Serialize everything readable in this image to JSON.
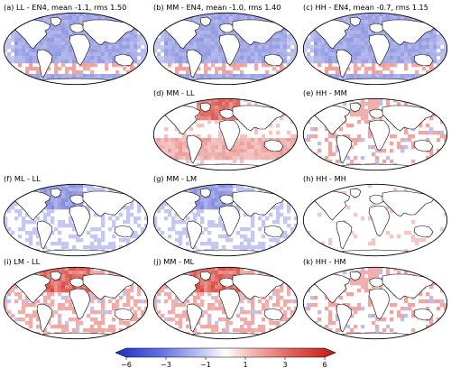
{
  "chart_data": {
    "type": "heatmap",
    "projection": "Robinson (global maps)",
    "grid": false,
    "panels": [
      {
        "id": "a",
        "title": "(a) LL - EN4, mean -1.1, rms 1.50",
        "pattern": "cold",
        "mean": -1.1,
        "rms": 1.5
      },
      {
        "id": "b",
        "title": "(b) MM - EN4, mean -1.0, rms 1.40",
        "pattern": "cold",
        "mean": -1.0,
        "rms": 1.4
      },
      {
        "id": "c",
        "title": "(c) HH - EN4, mean -0.7, rms 1.15",
        "pattern": "cold",
        "mean": -0.7,
        "rms": 1.15
      },
      {
        "id": "d",
        "title": "(d) MM - LL",
        "pattern": "warm"
      },
      {
        "id": "e",
        "title": "(e) HH - MM",
        "pattern": "weak"
      },
      {
        "id": "f",
        "title": "(f) ML - LL",
        "pattern": "coolN"
      },
      {
        "id": "g",
        "title": "(g) MM - LM",
        "pattern": "coolN"
      },
      {
        "id": "h",
        "title": "(h) HH - MH",
        "pattern": "neutral"
      },
      {
        "id": "i",
        "title": "(i) LM - LL",
        "pattern": "warmN"
      },
      {
        "id": "j",
        "title": "(j) MM - ML",
        "pattern": "warmN"
      },
      {
        "id": "k",
        "title": "(k) HH - HM",
        "pattern": "weak"
      }
    ],
    "colorbar": {
      "ticks": [
        -6,
        -3,
        -1,
        1,
        3,
        6
      ],
      "tick_labels": [
        "−6",
        "−3",
        "−1",
        "1",
        "3",
        "6"
      ],
      "range": [
        -6,
        6
      ],
      "colormap": "blue-white-red (diverging)",
      "orientation": "horizontal",
      "placement": "bottom"
    },
    "colors": {
      "negative": "#2e3cc8",
      "neutral": "#ffffff",
      "positive": "#d42a22",
      "coastline": "#000000"
    }
  }
}
